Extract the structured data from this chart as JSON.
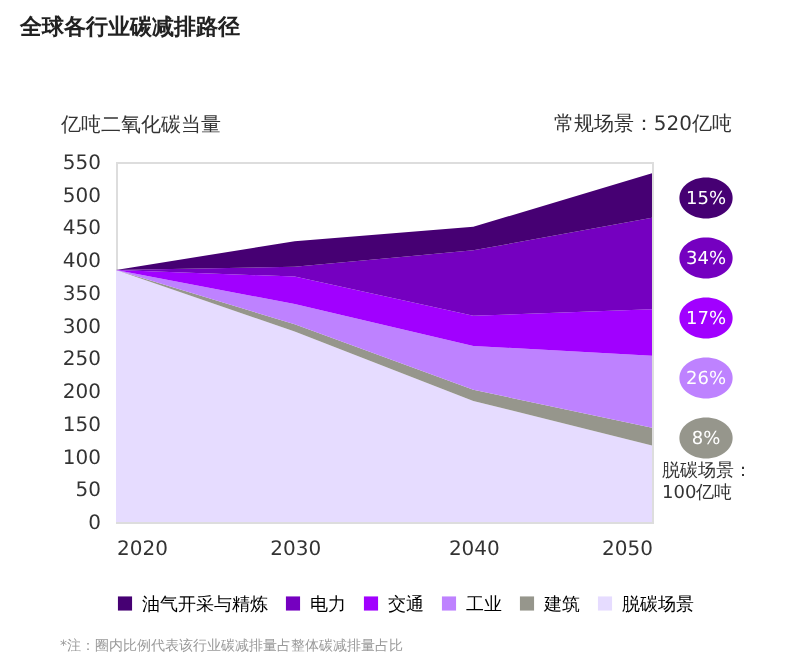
{
  "chart_data": {
    "type": "area",
    "stacked": true,
    "title": "全球各行业碳减排路径",
    "ylabel": "亿吨二氧化碳当量",
    "x": [
      2020,
      2030,
      2040,
      2050
    ],
    "xlim": [
      2020,
      2050
    ],
    "xticks": [
      2020,
      2030,
      2040,
      2050
    ],
    "ylim": [
      0,
      550
    ],
    "yticks": [
      0,
      50,
      100,
      150,
      200,
      250,
      300,
      350,
      400,
      450,
      500,
      550
    ],
    "grid": false,
    "legend": "bottom",
    "series": [
      {
        "name": "脱碳场景",
        "color": "#e6dcff",
        "values": [
          385,
          291,
          185,
          117
        ]
      },
      {
        "name": "建筑",
        "color": "#96968c",
        "values": [
          0,
          11,
          17,
          27
        ]
      },
      {
        "name": "工业",
        "color": "#be82ff",
        "values": [
          0,
          31,
          67,
          110
        ]
      },
      {
        "name": "交通",
        "color": "#a100ff",
        "values": [
          0,
          42,
          46,
          71
        ]
      },
      {
        "name": "电力",
        "color": "#7500c0",
        "values": [
          0,
          15,
          100,
          140
        ]
      },
      {
        "name": "油气开采与精炼",
        "color": "#460073",
        "values": [
          0,
          39,
          36,
          68
        ]
      }
    ],
    "annotations": [
      "常规场景：520亿吨",
      "15%",
      "34%",
      "17%",
      "26%",
      "8%",
      "脱碳场景：\n100亿吨",
      "*注：圈内比例代表该行业碳减排量占整体碳减排量占比"
    ]
  }
}
